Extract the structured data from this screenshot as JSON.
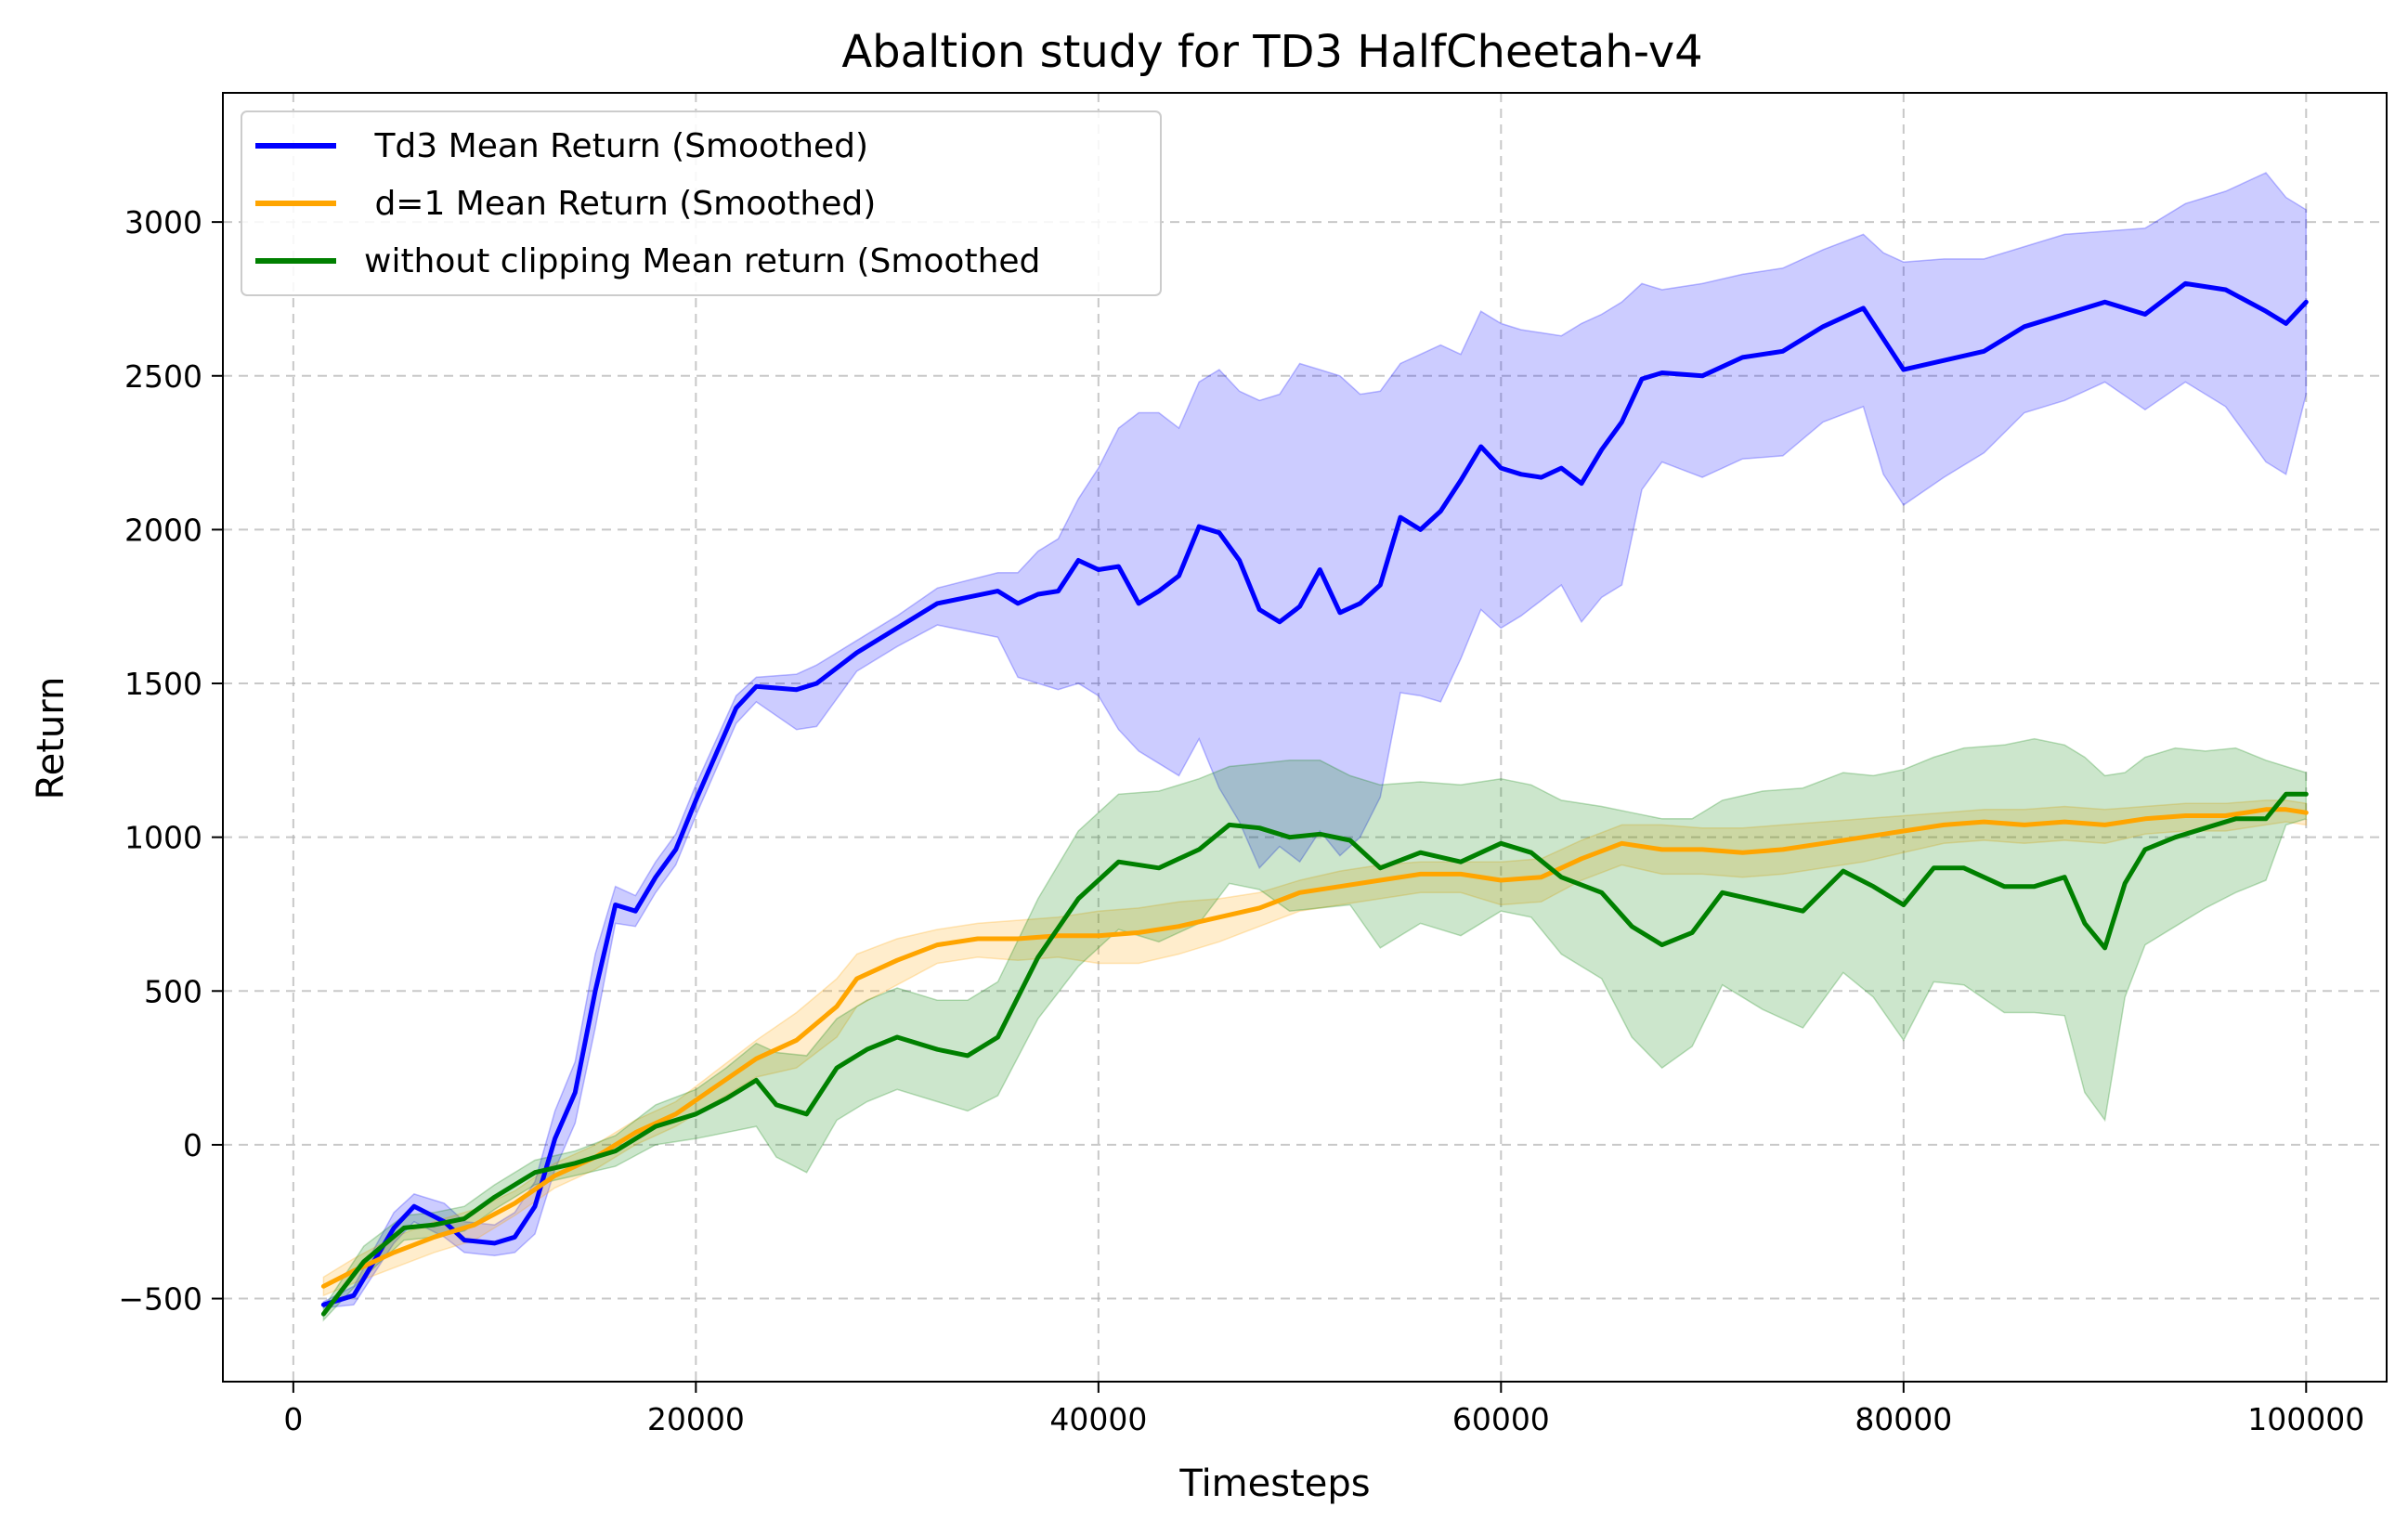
{
  "chart_data": {
    "type": "line",
    "title": "Abaltion study for TD3 HalfCheetah-v4",
    "xlabel": "Timesteps",
    "ylabel": "Return",
    "xlim": [
      -3500,
      104000
    ],
    "ylim": [
      -770,
      3420
    ],
    "xticks": [
      0,
      20000,
      40000,
      60000,
      80000,
      100000
    ],
    "xtick_labels": [
      "0",
      "20000",
      "40000",
      "60000",
      "80000",
      "100000"
    ],
    "yticks": [
      -500,
      0,
      500,
      1000,
      1500,
      2000,
      2500,
      3000
    ],
    "ytick_labels": [
      "−500",
      "0",
      "500",
      "1000",
      "1500",
      "2000",
      "2500",
      "3000"
    ],
    "grid": true,
    "legend_position": "top-left",
    "series": [
      {
        "name": " Td3 Mean Return (Smoothed)",
        "color": "#0000ff",
        "band_color": "#0000ff",
        "x": [
          1500,
          3000,
          5000,
          6000,
          7500,
          8500,
          10000,
          11000,
          12000,
          13000,
          14000,
          15000,
          16000,
          17000,
          18000,
          19000,
          20000,
          22000,
          23000,
          25000,
          26000,
          28000,
          30000,
          32000,
          35000,
          36000,
          37000,
          38000,
          39000,
          40000,
          41000,
          42000,
          43000,
          44000,
          45000,
          46000,
          47000,
          48000,
          49000,
          50000,
          51000,
          52000,
          53000,
          54000,
          55000,
          56000,
          57000,
          58000,
          59000,
          60000,
          61000,
          62000,
          63000,
          64000,
          65000,
          66000,
          67000,
          68000,
          70000,
          72000,
          74000,
          76000,
          78000,
          79000,
          80000,
          82000,
          84000,
          86000,
          88000,
          90000,
          92000,
          94000,
          96000,
          98000,
          99000,
          100000
        ],
        "mean": [
          -520,
          -490,
          -270,
          -200,
          -250,
          -310,
          -320,
          -300,
          -200,
          20,
          170,
          500,
          780,
          760,
          870,
          960,
          1120,
          1420,
          1490,
          1480,
          1500,
          1600,
          1680,
          1760,
          1800,
          1760,
          1790,
          1800,
          1900,
          1870,
          1880,
          1760,
          1800,
          1850,
          2010,
          1990,
          1900,
          1740,
          1700,
          1750,
          1870,
          1730,
          1760,
          1820,
          2040,
          2000,
          2060,
          2160,
          2270,
          2200,
          2180,
          2170,
          2200,
          2150,
          2260,
          2350,
          2490,
          2510,
          2500,
          2560,
          2580,
          2660,
          2720,
          2620,
          2520,
          2550,
          2580,
          2660,
          2700,
          2740,
          2700,
          2800,
          2780,
          2710,
          2670,
          2740
        ],
        "upper": [
          -510,
          -460,
          -220,
          -160,
          -190,
          -250,
          -260,
          -220,
          -120,
          110,
          270,
          620,
          840,
          810,
          920,
          1010,
          1170,
          1460,
          1520,
          1530,
          1560,
          1640,
          1720,
          1810,
          1860,
          1860,
          1930,
          1970,
          2100,
          2200,
          2330,
          2380,
          2380,
          2330,
          2480,
          2520,
          2450,
          2420,
          2440,
          2540,
          2520,
          2500,
          2440,
          2450,
          2540,
          2570,
          2600,
          2570,
          2710,
          2670,
          2650,
          2640,
          2630,
          2670,
          2700,
          2740,
          2800,
          2780,
          2800,
          2830,
          2850,
          2910,
          2960,
          2900,
          2870,
          2880,
          2880,
          2920,
          2960,
          2970,
          2980,
          3060,
          3100,
          3160,
          3080,
          3040
        ],
        "lower": [
          -530,
          -520,
          -320,
          -250,
          -300,
          -350,
          -360,
          -350,
          -290,
          -80,
          70,
          380,
          720,
          710,
          820,
          910,
          1070,
          1370,
          1440,
          1350,
          1360,
          1540,
          1620,
          1690,
          1650,
          1520,
          1500,
          1480,
          1500,
          1460,
          1350,
          1280,
          1240,
          1200,
          1320,
          1160,
          1050,
          900,
          970,
          920,
          1020,
          940,
          1000,
          1130,
          1470,
          1460,
          1440,
          1580,
          1740,
          1680,
          1720,
          1770,
          1820,
          1700,
          1780,
          1820,
          2130,
          2220,
          2170,
          2230,
          2240,
          2350,
          2400,
          2180,
          2080,
          2170,
          2250,
          2380,
          2420,
          2480,
          2390,
          2480,
          2400,
          2220,
          2180,
          2440
        ]
      },
      {
        "name": " d=1 Mean Return (Smoothed)",
        "color": "#ffa500",
        "band_color": "#ffa500",
        "x": [
          1500,
          3000,
          5000,
          7000,
          9000,
          11000,
          13000,
          15000,
          17000,
          19000,
          21000,
          23000,
          25000,
          27000,
          28000,
          30000,
          32000,
          34000,
          36000,
          38000,
          40000,
          42000,
          44000,
          46000,
          48000,
          50000,
          52000,
          54000,
          56000,
          58000,
          60000,
          62000,
          64000,
          66000,
          68000,
          70000,
          72000,
          74000,
          76000,
          78000,
          80000,
          82000,
          84000,
          86000,
          88000,
          90000,
          92000,
          94000,
          96000,
          98000,
          99000,
          100000
        ],
        "mean": [
          -460,
          -410,
          -350,
          -300,
          -260,
          -190,
          -100,
          -40,
          40,
          100,
          190,
          280,
          340,
          450,
          540,
          600,
          650,
          670,
          670,
          680,
          680,
          690,
          710,
          740,
          770,
          820,
          840,
          860,
          880,
          880,
          860,
          870,
          930,
          980,
          960,
          960,
          950,
          960,
          980,
          1000,
          1020,
          1040,
          1050,
          1040,
          1050,
          1040,
          1060,
          1070,
          1070,
          1090,
          1090,
          1080
        ],
        "upper": [
          -430,
          -370,
          -300,
          -250,
          -210,
          -150,
          -60,
          0,
          80,
          140,
          240,
          340,
          430,
          540,
          620,
          670,
          700,
          720,
          730,
          740,
          760,
          770,
          790,
          800,
          820,
          860,
          890,
          910,
          920,
          920,
          920,
          930,
          990,
          1040,
          1040,
          1030,
          1030,
          1040,
          1050,
          1060,
          1070,
          1080,
          1090,
          1090,
          1100,
          1090,
          1100,
          1110,
          1110,
          1120,
          1120,
          1110
        ],
        "lower": [
          -490,
          -450,
          -400,
          -350,
          -310,
          -230,
          -140,
          -80,
          0,
          60,
          140,
          220,
          250,
          350,
          450,
          520,
          590,
          610,
          600,
          610,
          590,
          590,
          620,
          660,
          710,
          760,
          780,
          800,
          820,
          820,
          780,
          790,
          860,
          910,
          880,
          880,
          870,
          880,
          900,
          920,
          950,
          980,
          990,
          980,
          990,
          980,
          1010,
          1020,
          1020,
          1040,
          1050,
          1040
        ]
      },
      {
        "name": "without clipping Mean return (Smoothed",
        "color": "#008000",
        "band_color": "#008000",
        "x": [
          1500,
          3500,
          5500,
          7000,
          8500,
          10000,
          12000,
          14000,
          16000,
          18000,
          20000,
          21500,
          23000,
          24000,
          25500,
          27000,
          28500,
          30000,
          32000,
          33500,
          35000,
          37000,
          39000,
          41000,
          43000,
          45000,
          46500,
          48000,
          49500,
          51000,
          52500,
          54000,
          56000,
          58000,
          60000,
          61500,
          63000,
          65000,
          66500,
          68000,
          69500,
          71000,
          73000,
          75000,
          77000,
          78500,
          80000,
          81500,
          83000,
          85000,
          86500,
          88000,
          89000,
          90000,
          91000,
          92000,
          93500,
          95000,
          96500,
          98000,
          99000,
          100000
        ],
        "mean": [
          -550,
          -380,
          -270,
          -260,
          -240,
          -170,
          -90,
          -60,
          -20,
          60,
          100,
          150,
          210,
          130,
          100,
          250,
          310,
          350,
          310,
          290,
          350,
          610,
          800,
          920,
          900,
          960,
          1040,
          1030,
          1000,
          1010,
          990,
          900,
          950,
          920,
          980,
          950,
          870,
          820,
          710,
          650,
          690,
          820,
          790,
          760,
          890,
          840,
          780,
          900,
          900,
          840,
          840,
          870,
          720,
          640,
          850,
          960,
          1000,
          1030,
          1060,
          1060,
          1140,
          1140
        ],
        "upper": [
          -530,
          -330,
          -230,
          -220,
          -200,
          -130,
          -50,
          -20,
          30,
          130,
          180,
          250,
          330,
          300,
          290,
          410,
          470,
          510,
          470,
          470,
          530,
          800,
          1020,
          1140,
          1150,
          1190,
          1230,
          1240,
          1250,
          1250,
          1200,
          1170,
          1180,
          1170,
          1190,
          1170,
          1120,
          1100,
          1080,
          1060,
          1060,
          1120,
          1150,
          1160,
          1210,
          1200,
          1220,
          1260,
          1290,
          1300,
          1320,
          1300,
          1260,
          1200,
          1210,
          1260,
          1290,
          1280,
          1290,
          1250,
          1230,
          1210
        ],
        "lower": [
          -570,
          -430,
          -310,
          -300,
          -280,
          -210,
          -130,
          -100,
          -70,
          0,
          20,
          40,
          60,
          -40,
          -90,
          80,
          140,
          180,
          140,
          110,
          160,
          410,
          580,
          700,
          660,
          720,
          850,
          830,
          760,
          770,
          780,
          640,
          720,
          680,
          760,
          740,
          620,
          540,
          350,
          250,
          320,
          520,
          440,
          380,
          560,
          480,
          340,
          530,
          520,
          430,
          430,
          420,
          170,
          80,
          480,
          650,
          710,
          770,
          820,
          860,
          1040,
          1060
        ]
      }
    ]
  }
}
